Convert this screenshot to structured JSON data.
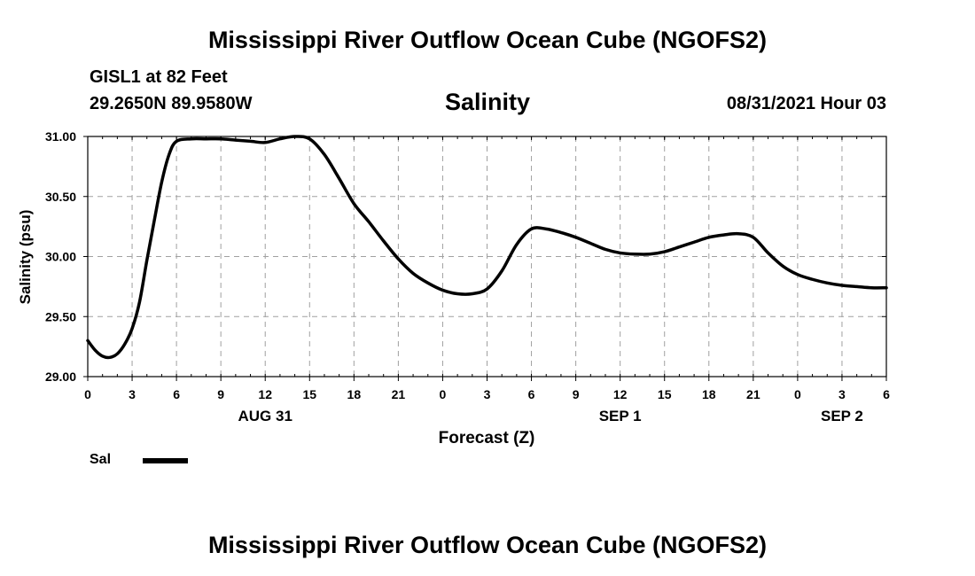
{
  "header": {
    "title_top": "Mississippi River Outflow Ocean Cube (NGOFS2)",
    "station": "GISL1 at 82 Feet",
    "coords": "29.2650N  89.9580W",
    "chart_title": "Salinity",
    "date_hour": "08/31/2021 Hour 03"
  },
  "footer": {
    "title_bottom": "Mississippi River Outflow Ocean Cube (NGOFS2)"
  },
  "legend": {
    "label": "Sal"
  },
  "colors": {
    "line": "#000000",
    "grid": "#a0a0a0",
    "background": "#ffffff"
  },
  "chart_data": {
    "type": "line",
    "title": "Salinity",
    "xlabel": "Forecast (Z)",
    "ylabel": "Salinity (psu)",
    "xlim": [
      0,
      54
    ],
    "ylim": [
      29.0,
      31.0
    ],
    "x_ticks": [
      0,
      3,
      6,
      9,
      12,
      15,
      18,
      21,
      24,
      27,
      30,
      33,
      36,
      39,
      42,
      45,
      48,
      51,
      54
    ],
    "x_tick_labels": [
      "0",
      "3",
      "6",
      "9",
      "12",
      "15",
      "18",
      "21",
      "0",
      "3",
      "6",
      "9",
      "12",
      "15",
      "18",
      "21",
      "0",
      "3",
      "6"
    ],
    "y_ticks": [
      29.0,
      29.5,
      30.0,
      30.5,
      31.0
    ],
    "y_tick_labels": [
      "29.00",
      "29.50",
      "30.00",
      "30.50",
      "31.00"
    ],
    "date_labels": [
      {
        "x": 12,
        "label": "AUG 31"
      },
      {
        "x": 36,
        "label": "SEP 1"
      },
      {
        "x": 51,
        "label": "SEP 2"
      }
    ],
    "grid": true,
    "legend": "bottom-left",
    "series": [
      {
        "name": "Sal",
        "x": [
          0,
          0.5,
          1,
          1.5,
          2,
          2.5,
          3,
          3.5,
          4,
          4.5,
          5,
          5.5,
          6,
          7,
          8,
          9,
          10,
          11,
          12,
          13,
          14,
          15,
          16,
          17,
          18,
          19,
          20,
          21,
          22,
          23,
          24,
          25,
          26,
          27,
          28,
          29,
          30,
          31,
          32,
          33,
          34,
          35,
          36,
          37,
          38,
          39,
          40,
          41,
          42,
          43,
          44,
          45,
          46,
          47,
          48,
          49,
          50,
          51,
          52,
          53,
          54
        ],
        "values": [
          29.3,
          29.22,
          29.17,
          29.16,
          29.19,
          29.27,
          29.4,
          29.62,
          29.97,
          30.3,
          30.62,
          30.85,
          30.96,
          30.98,
          30.98,
          30.98,
          30.97,
          30.96,
          30.95,
          30.98,
          31.0,
          30.98,
          30.85,
          30.65,
          30.44,
          30.29,
          30.13,
          29.98,
          29.86,
          29.78,
          29.72,
          29.69,
          29.69,
          29.73,
          29.88,
          30.1,
          30.23,
          30.23,
          30.2,
          30.16,
          30.11,
          30.06,
          30.03,
          30.02,
          30.02,
          30.04,
          30.08,
          30.12,
          30.16,
          30.18,
          30.19,
          30.16,
          30.03,
          29.92,
          29.85,
          29.81,
          29.78,
          29.76,
          29.75,
          29.74,
          29.74
        ]
      }
    ]
  }
}
